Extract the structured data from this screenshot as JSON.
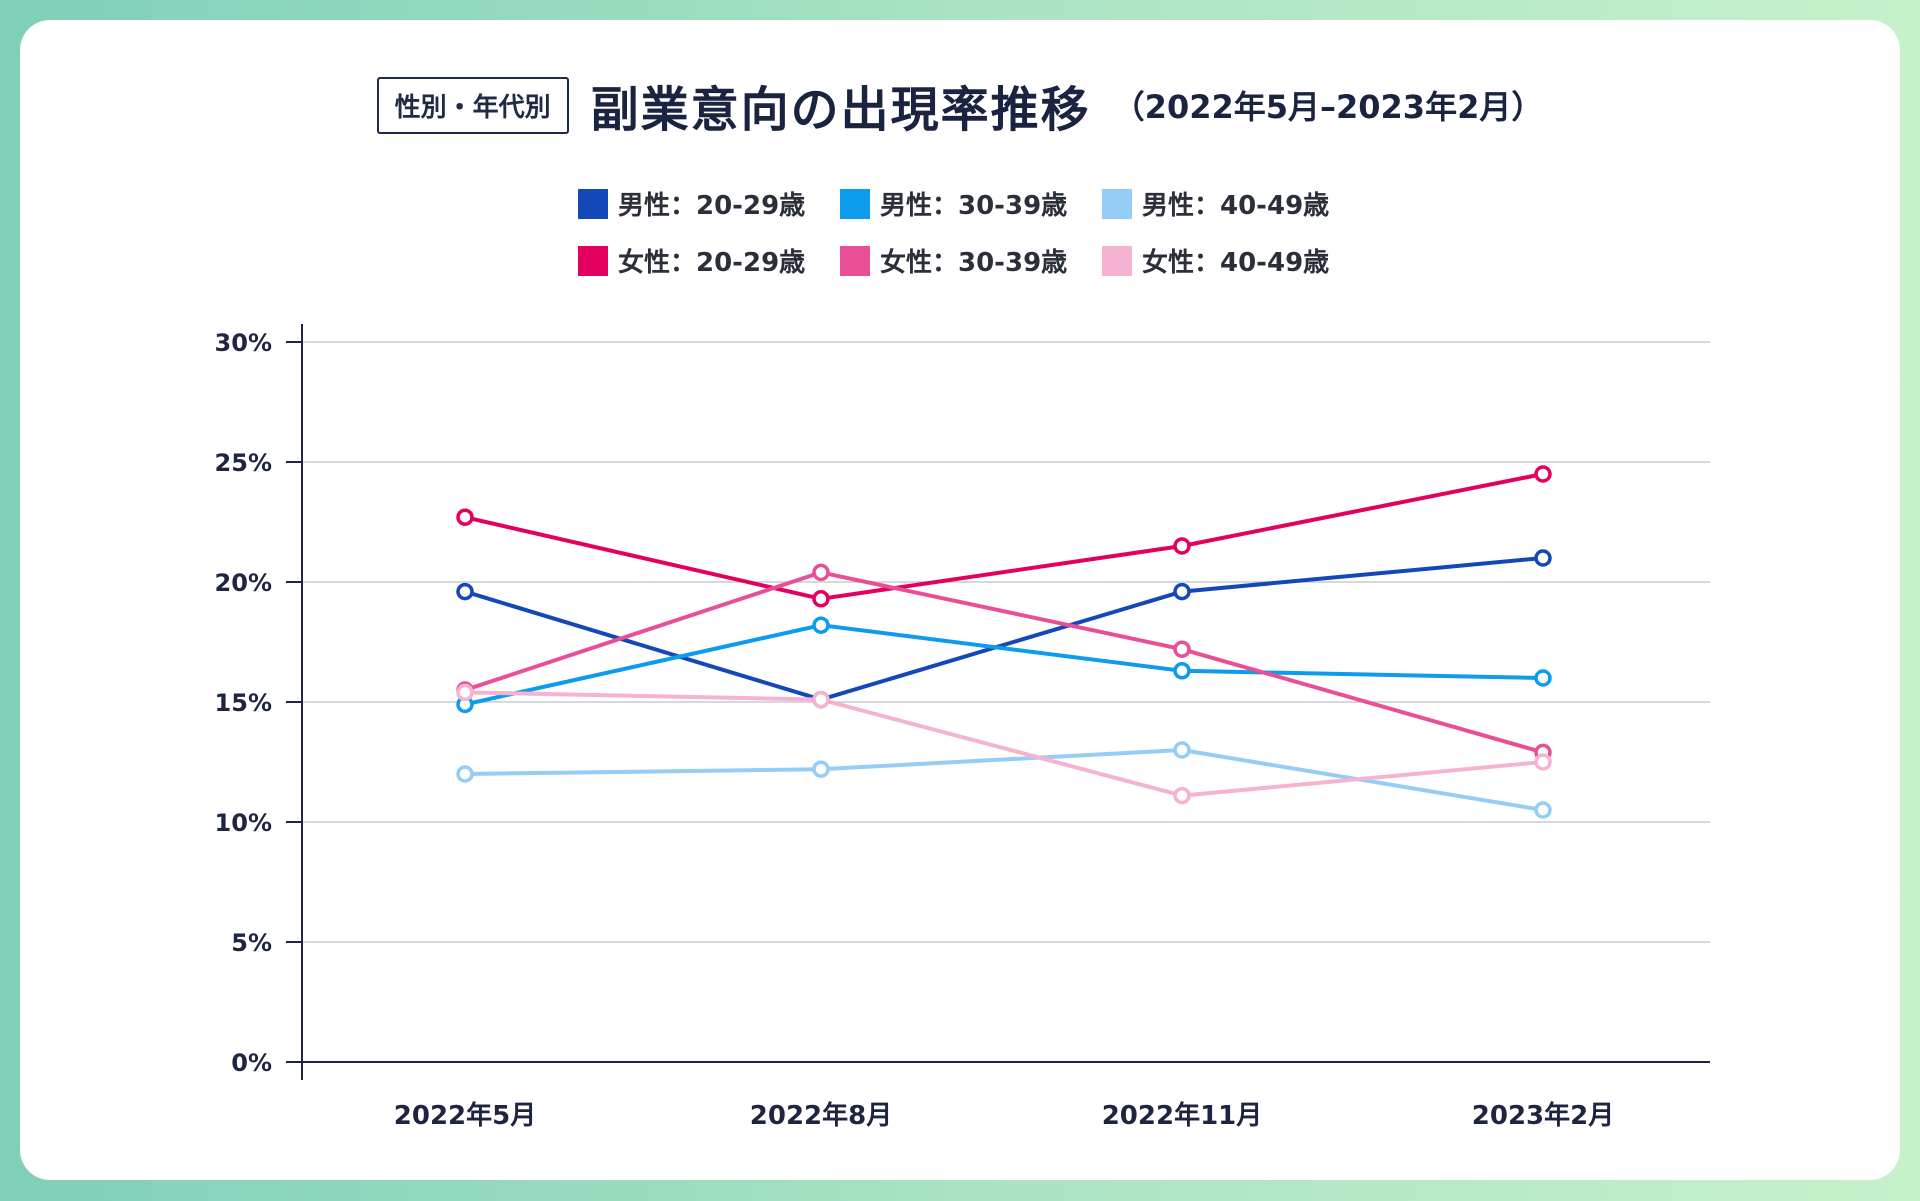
{
  "header": {
    "tag": "性別・年代別",
    "title": "副業意向の出現率推移",
    "subtitle": "（2022年5月–2023年2月）"
  },
  "chart_data": {
    "type": "line",
    "title": "副業意向の出現率推移",
    "categories": [
      "2022年5月",
      "2022年8月",
      "2022年11月",
      "2023年2月"
    ],
    "y_ticks": [
      "0%",
      "5%",
      "10%",
      "15%",
      "20%",
      "25%",
      "30%"
    ],
    "ylim": [
      0,
      30
    ],
    "grid": true,
    "legend_position": "top-center",
    "series": [
      {
        "name": "男性：20-29歳",
        "color": "#1447b8",
        "values": [
          19.6,
          15.1,
          19.6,
          21.0
        ]
      },
      {
        "name": "男性：30-39歳",
        "color": "#0d9bec",
        "values": [
          14.9,
          18.2,
          16.3,
          16.0
        ]
      },
      {
        "name": "男性：40-49歳",
        "color": "#95cdf6",
        "values": [
          12.0,
          12.2,
          13.0,
          10.5
        ]
      },
      {
        "name": "女性：20-29歳",
        "color": "#e4005f",
        "values": [
          22.7,
          19.3,
          21.5,
          24.5
        ]
      },
      {
        "name": "女性：30-39歳",
        "color": "#e84f97",
        "values": [
          15.5,
          20.4,
          17.2,
          12.9
        ]
      },
      {
        "name": "女性：40-49歳",
        "color": "#f5b3d1",
        "values": [
          15.4,
          15.1,
          11.1,
          12.5
        ]
      }
    ]
  }
}
